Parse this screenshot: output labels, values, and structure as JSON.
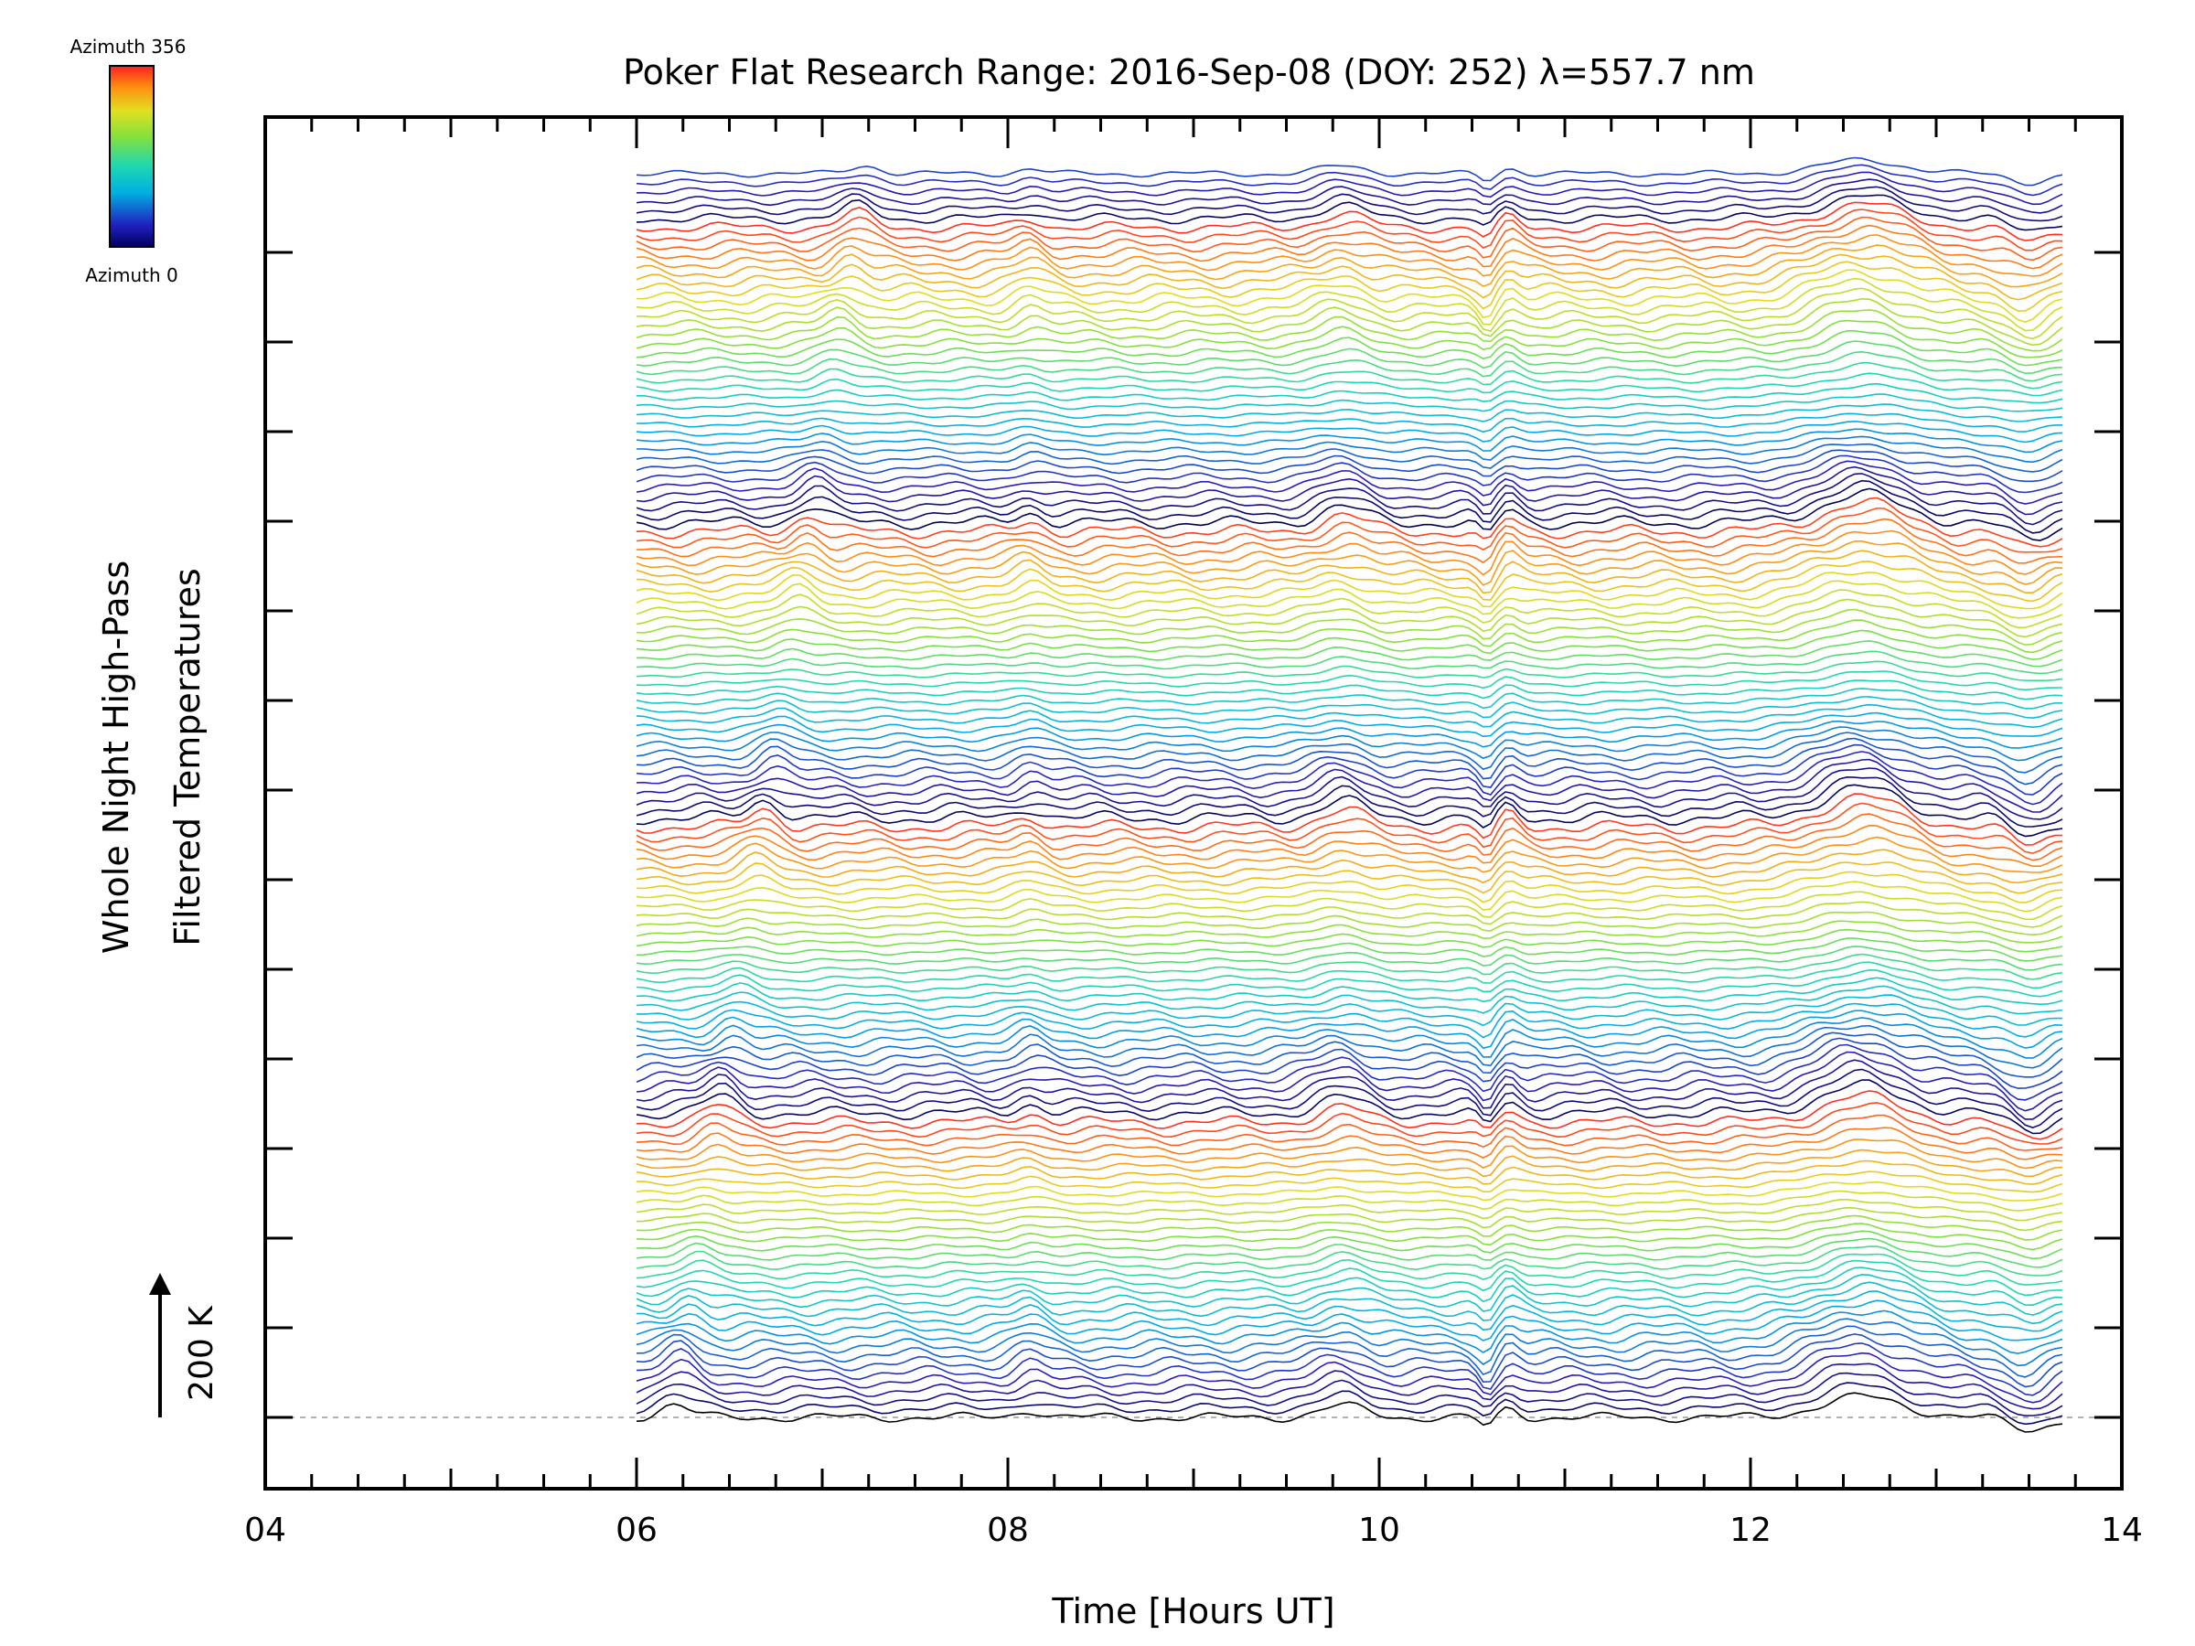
{
  "chart_data": {
    "type": "line",
    "title": "Poker Flat Research Range: 2016-Sep-08 (DOY: 252) λ=557.7 nm",
    "xlabel": "Time [Hours UT]",
    "ylabel_line1": "Whole Night High-Pass",
    "ylabel_line2": "Filtered Temperatures",
    "xlim": [
      4,
      14
    ],
    "x_ticks": [
      "04",
      "06",
      "08",
      "10",
      "12",
      "14"
    ],
    "data_x_range": [
      6.0,
      13.7
    ],
    "scale_bar_label": "200 K",
    "scale_bar_value_K": 200,
    "colorbar": {
      "top_label": "Azimuth 356",
      "bottom_label": "Azimuth 0",
      "min": 0,
      "max": 356,
      "colormap": "rainbow"
    },
    "n_traces": 140,
    "baseline_style": "dashed gray",
    "feature_times_hours": [
      6.2,
      8.1,
      9.8,
      10.6,
      12.6,
      13.7
    ],
    "colors": {
      "axis": "#000000",
      "baseline": "#999999",
      "background": "#ffffff"
    }
  }
}
